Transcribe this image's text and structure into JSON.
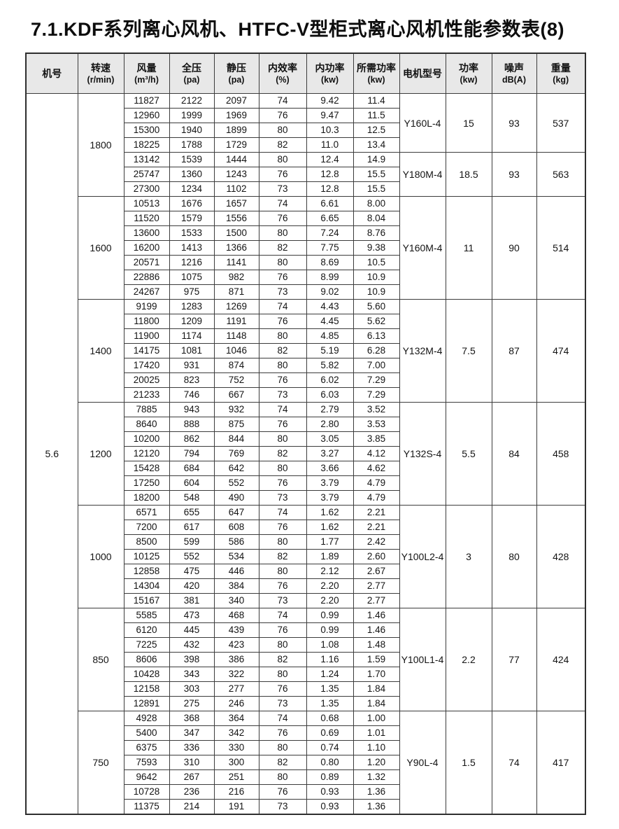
{
  "page_title": "7.1.KDF系列离心风机、HTFC-V型柜式离心风机性能参数表(8)",
  "fan_number": "5.6",
  "table": {
    "headers": [
      {
        "title": "机号",
        "unit": ""
      },
      {
        "title": "转速",
        "unit": "(r/min)"
      },
      {
        "title": "风量",
        "unit": "(m³/h)"
      },
      {
        "title": "全压",
        "unit": "(pa)"
      },
      {
        "title": "静压",
        "unit": "(pa)"
      },
      {
        "title": "内效率",
        "unit": "(%)"
      },
      {
        "title": "内功率",
        "unit": "(kw)"
      },
      {
        "title": "所需功率",
        "unit": "(kw)"
      },
      {
        "title": "电机型号",
        "unit": ""
      },
      {
        "title": "功率",
        "unit": "(kw)"
      },
      {
        "title": "噪声",
        "unit": "dB(A)"
      },
      {
        "title": "重量",
        "unit": "(kg)"
      }
    ],
    "sections": [
      {
        "speed": "1800",
        "rows": [
          [
            "11827",
            "2122",
            "2097",
            "74",
            "9.42",
            "11.4"
          ],
          [
            "12960",
            "1999",
            "1969",
            "76",
            "9.47",
            "11.5"
          ],
          [
            "15300",
            "1940",
            "1899",
            "80",
            "10.3",
            "12.5"
          ],
          [
            "18225",
            "1788",
            "1729",
            "82",
            "11.0",
            "13.4"
          ],
          [
            "13142",
            "1539",
            "1444",
            "80",
            "12.4",
            "14.9"
          ],
          [
            "25747",
            "1360",
            "1243",
            "76",
            "12.8",
            "15.5"
          ],
          [
            "27300",
            "1234",
            "1102",
            "73",
            "12.8",
            "15.5"
          ]
        ],
        "motor_groups": [
          {
            "span": 4,
            "model": "Y160L-4",
            "power": "15",
            "noise": "93",
            "weight": "537"
          },
          {
            "span": 3,
            "model": "Y180M-4",
            "power": "18.5",
            "noise": "93",
            "weight": "563"
          }
        ]
      },
      {
        "speed": "1600",
        "rows": [
          [
            "10513",
            "1676",
            "1657",
            "74",
            "6.61",
            "8.00"
          ],
          [
            "11520",
            "1579",
            "1556",
            "76",
            "6.65",
            "8.04"
          ],
          [
            "13600",
            "1533",
            "1500",
            "80",
            "7.24",
            "8.76"
          ],
          [
            "16200",
            "1413",
            "1366",
            "82",
            "7.75",
            "9.38"
          ],
          [
            "20571",
            "1216",
            "1141",
            "80",
            "8.69",
            "10.5"
          ],
          [
            "22886",
            "1075",
            "982",
            "76",
            "8.99",
            "10.9"
          ],
          [
            "24267",
            "975",
            "871",
            "73",
            "9.02",
            "10.9"
          ]
        ],
        "motor_groups": [
          {
            "span": 7,
            "model": "Y160M-4",
            "power": "11",
            "noise": "90",
            "weight": "514"
          }
        ]
      },
      {
        "speed": "1400",
        "rows": [
          [
            "9199",
            "1283",
            "1269",
            "74",
            "4.43",
            "5.60"
          ],
          [
            "11800",
            "1209",
            "1191",
            "76",
            "4.45",
            "5.62"
          ],
          [
            "11900",
            "1174",
            "1148",
            "80",
            "4.85",
            "6.13"
          ],
          [
            "14175",
            "1081",
            "1046",
            "82",
            "5.19",
            "6.28"
          ],
          [
            "17420",
            "931",
            "874",
            "80",
            "5.82",
            "7.00"
          ],
          [
            "20025",
            "823",
            "752",
            "76",
            "6.02",
            "7.29"
          ],
          [
            "21233",
            "746",
            "667",
            "73",
            "6.03",
            "7.29"
          ]
        ],
        "motor_groups": [
          {
            "span": 7,
            "model": "Y132M-4",
            "power": "7.5",
            "noise": "87",
            "weight": "474"
          }
        ]
      },
      {
        "speed": "1200",
        "rows": [
          [
            "7885",
            "943",
            "932",
            "74",
            "2.79",
            "3.52"
          ],
          [
            "8640",
            "888",
            "875",
            "76",
            "2.80",
            "3.53"
          ],
          [
            "10200",
            "862",
            "844",
            "80",
            "3.05",
            "3.85"
          ],
          [
            "12120",
            "794",
            "769",
            "82",
            "3.27",
            "4.12"
          ],
          [
            "15428",
            "684",
            "642",
            "80",
            "3.66",
            "4.62"
          ],
          [
            "17250",
            "604",
            "552",
            "76",
            "3.79",
            "4.79"
          ],
          [
            "18200",
            "548",
            "490",
            "73",
            "3.79",
            "4.79"
          ]
        ],
        "motor_groups": [
          {
            "span": 7,
            "model": "Y132S-4",
            "power": "5.5",
            "noise": "84",
            "weight": "458"
          }
        ]
      },
      {
        "speed": "1000",
        "rows": [
          [
            "6571",
            "655",
            "647",
            "74",
            "1.62",
            "2.21"
          ],
          [
            "7200",
            "617",
            "608",
            "76",
            "1.62",
            "2.21"
          ],
          [
            "8500",
            "599",
            "586",
            "80",
            "1.77",
            "2.42"
          ],
          [
            "10125",
            "552",
            "534",
            "82",
            "1.89",
            "2.60"
          ],
          [
            "12858",
            "475",
            "446",
            "80",
            "2.12",
            "2.67"
          ],
          [
            "14304",
            "420",
            "384",
            "76",
            "2.20",
            "2.77"
          ],
          [
            "15167",
            "381",
            "340",
            "73",
            "2.20",
            "2.77"
          ]
        ],
        "motor_groups": [
          {
            "span": 7,
            "model": "Y100L2-4",
            "power": "3",
            "noise": "80",
            "weight": "428"
          }
        ]
      },
      {
        "speed": "850",
        "rows": [
          [
            "5585",
            "473",
            "468",
            "74",
            "0.99",
            "1.46"
          ],
          [
            "6120",
            "445",
            "439",
            "76",
            "0.99",
            "1.46"
          ],
          [
            "7225",
            "432",
            "423",
            "80",
            "1.08",
            "1.48"
          ],
          [
            "8606",
            "398",
            "386",
            "82",
            "1.16",
            "1.59"
          ],
          [
            "10428",
            "343",
            "322",
            "80",
            "1.24",
            "1.70"
          ],
          [
            "12158",
            "303",
            "277",
            "76",
            "1.35",
            "1.84"
          ],
          [
            "12891",
            "275",
            "246",
            "73",
            "1.35",
            "1.84"
          ]
        ],
        "motor_groups": [
          {
            "span": 7,
            "model": "Y100L1-4",
            "power": "2.2",
            "noise": "77",
            "weight": "424"
          }
        ]
      },
      {
        "speed": "750",
        "rows": [
          [
            "4928",
            "368",
            "364",
            "74",
            "0.68",
            "1.00"
          ],
          [
            "5400",
            "347",
            "342",
            "76",
            "0.69",
            "1.01"
          ],
          [
            "6375",
            "336",
            "330",
            "80",
            "0.74",
            "1.10"
          ],
          [
            "7593",
            "310",
            "300",
            "82",
            "0.80",
            "1.20"
          ],
          [
            "9642",
            "267",
            "251",
            "80",
            "0.89",
            "1.32"
          ],
          [
            "10728",
            "236",
            "216",
            "76",
            "0.93",
            "1.36"
          ],
          [
            "11375",
            "214",
            "191",
            "73",
            "0.93",
            "1.36"
          ]
        ],
        "motor_groups": [
          {
            "span": 7,
            "model": "Y90L-4",
            "power": "1.5",
            "noise": "74",
            "weight": "417"
          }
        ]
      }
    ]
  }
}
